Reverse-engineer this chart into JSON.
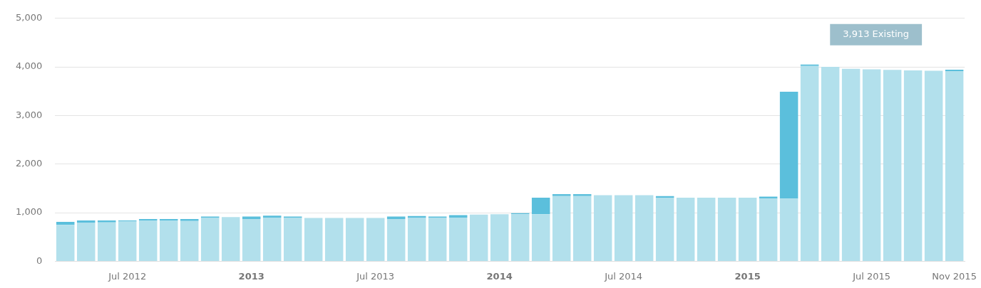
{
  "chart_data": {
    "type": "bar",
    "stacked": true,
    "grid": "y",
    "categories": [
      null,
      null,
      null,
      "Jul 2012",
      null,
      null,
      null,
      null,
      null,
      "2013",
      null,
      null,
      null,
      null,
      null,
      "Jul 2013",
      null,
      null,
      null,
      null,
      null,
      "2014",
      null,
      null,
      null,
      null,
      null,
      "Jul 2014",
      null,
      null,
      null,
      null,
      null,
      "2015",
      null,
      null,
      null,
      null,
      null,
      "Jul 2015",
      null,
      null,
      null,
      "Nov 2015"
    ],
    "series": [
      {
        "color": "#b2e0ec",
        "values": [
          750,
          790,
          800,
          820,
          840,
          840,
          830,
          890,
          910,
          870,
          900,
          890,
          890,
          890,
          890,
          890,
          870,
          890,
          890,
          900,
          960,
          970,
          970,
          970,
          1340,
          1340,
          1360,
          1360,
          1360,
          1310,
          1310,
          1310,
          1310,
          1310,
          1290,
          1290,
          4020,
          4000,
          3960,
          3950,
          3940,
          3930,
          3920,
          3913
        ]
      },
      {
        "color": "#5bbfdc",
        "values": [
          60,
          50,
          40,
          20,
          30,
          30,
          40,
          30,
          0,
          50,
          40,
          30,
          0,
          0,
          0,
          0,
          50,
          40,
          30,
          50,
          0,
          0,
          20,
          340,
          40,
          40,
          0,
          0,
          0,
          30,
          0,
          0,
          0,
          0,
          40,
          2200,
          30,
          0,
          0,
          0,
          0,
          0,
          0,
          30
        ]
      }
    ],
    "ylim": [
      0,
      5000
    ],
    "yticks": [
      0,
      {
        "value": 1000,
        "label": "1,000"
      },
      {
        "value": 2000,
        "label": "2,000"
      },
      {
        "value": 3000,
        "label": "3,000"
      },
      {
        "value": 4000,
        "label": "4,000"
      },
      {
        "value": 5000,
        "label": "5,000"
      }
    ],
    "annotations": [
      "3,913 Existing"
    ]
  }
}
